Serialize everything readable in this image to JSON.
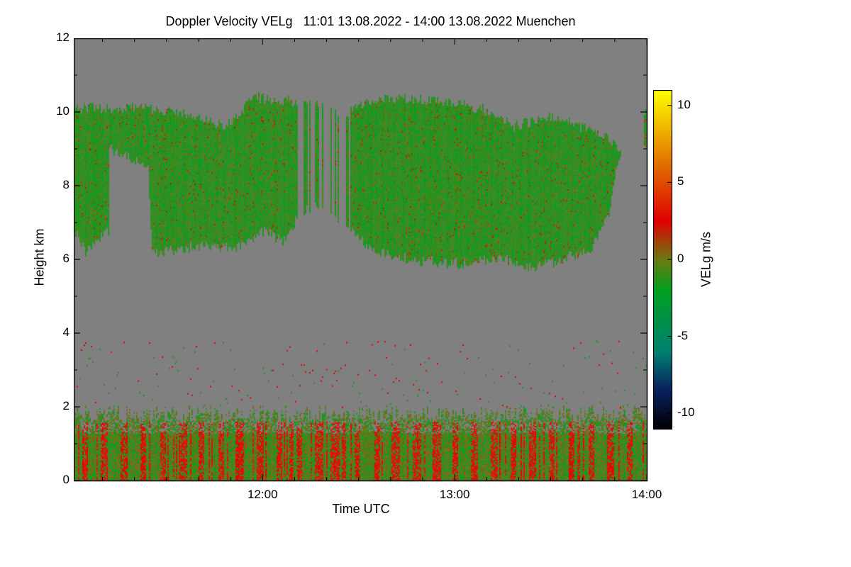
{
  "chart_data": {
    "type": "heatmap",
    "title": "Doppler Velocity VELg   11:01 13.08.2022 - 14:00 13.08.2022 Muenchen",
    "xlabel": "Time UTC",
    "ylabel": "Height km",
    "colorbar_label": "VELg m/s",
    "x_range_hours": [
      11.017,
      14.0
    ],
    "y_range_km": [
      0,
      12
    ],
    "x_ticks": [
      {
        "value": 12.0,
        "label": "12:00"
      },
      {
        "value": 13.0,
        "label": "13:00"
      },
      {
        "value": 14.0,
        "label": "14:00"
      }
    ],
    "y_ticks": [
      {
        "value": 0,
        "label": "0"
      },
      {
        "value": 2,
        "label": "2"
      },
      {
        "value": 4,
        "label": "4"
      },
      {
        "value": 6,
        "label": "6"
      },
      {
        "value": 8,
        "label": "8"
      },
      {
        "value": 10,
        "label": "10"
      },
      {
        "value": 12,
        "label": "12"
      }
    ],
    "colorbar_range": [
      -11,
      11
    ],
    "colorbar_ticks": [
      {
        "value": 10,
        "label": "10"
      },
      {
        "value": 5,
        "label": "5"
      },
      {
        "value": 0,
        "label": "0"
      },
      {
        "value": -5,
        "label": "-5"
      },
      {
        "value": -10,
        "label": "-10"
      }
    ],
    "colormap": [
      {
        "value": -11,
        "color": "#000000"
      },
      {
        "value": -8.5,
        "color": "#0a1f5e"
      },
      {
        "value": -6,
        "color": "#008070"
      },
      {
        "value": -2,
        "color": "#00a020"
      },
      {
        "value": 0,
        "color": "#6b7a10"
      },
      {
        "value": 2.5,
        "color": "#e00000"
      },
      {
        "value": 6,
        "color": "#e06a00"
      },
      {
        "value": 11,
        "color": "#ffff00"
      }
    ],
    "background_color": "#808080",
    "layers": [
      {
        "name": "upper-cloud",
        "base_km": 6.0,
        "top_km": 10.4,
        "mean_velocity": -1.0
      },
      {
        "name": "boundary-layer",
        "base_km": 0.0,
        "top_km": 2.0,
        "mean_velocity": 0.5
      }
    ]
  }
}
